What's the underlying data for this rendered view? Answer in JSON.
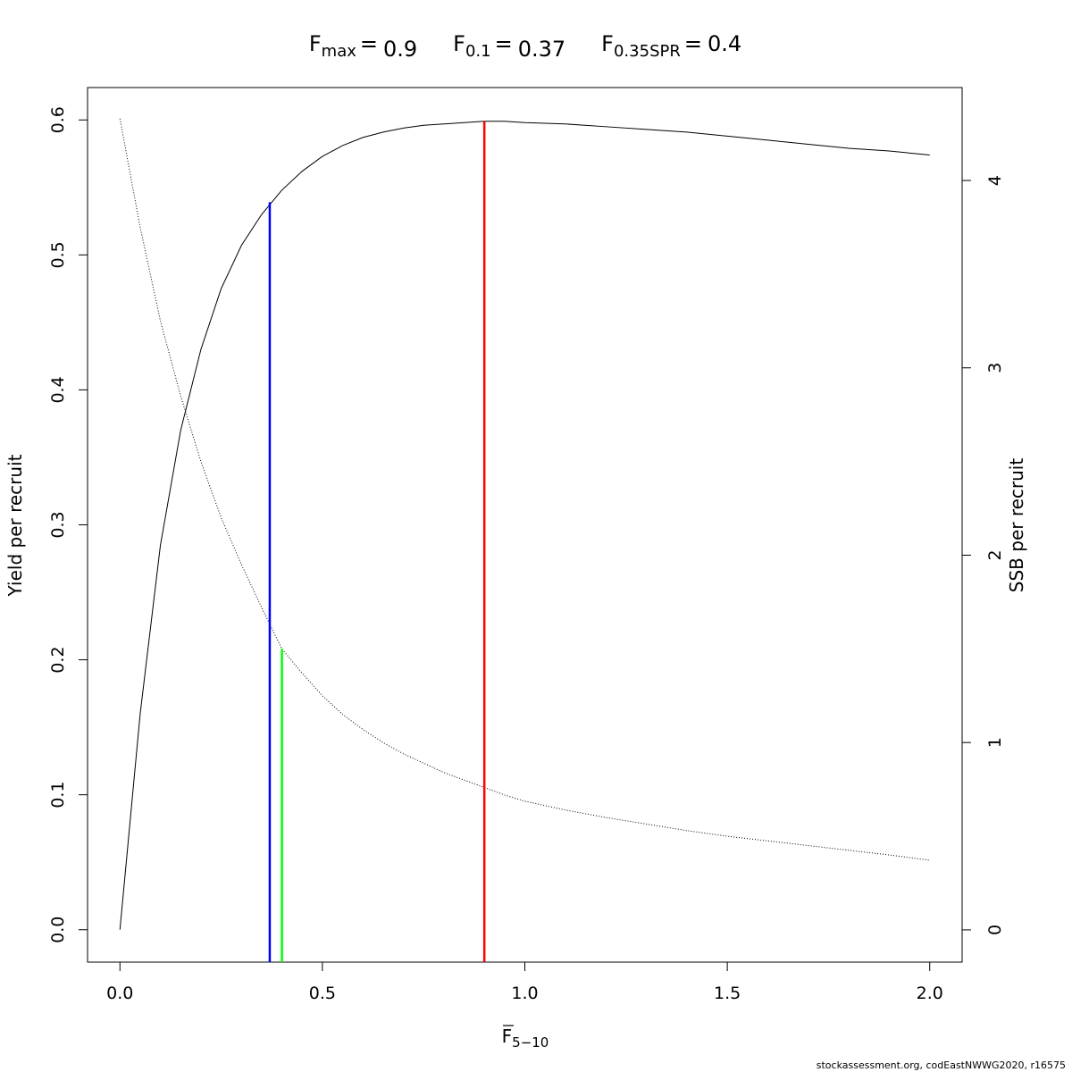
{
  "chart_data": {
    "type": "line",
    "reference_lines": [
      {
        "symbol": "F",
        "subscript": "max",
        "relation": "=",
        "x": 0.9,
        "y_end": 0.599,
        "color": "#ff0000"
      },
      {
        "symbol": "F",
        "subscript": "0.1",
        "relation": "=",
        "x": 0.37,
        "y_end": 0.539,
        "color": "#0000ff"
      },
      {
        "symbol": "F",
        "subscript": "0.35SPR",
        "relation": "=",
        "x": 0.4,
        "y_end": 1.5,
        "axis": "y2",
        "color": "#00ff00"
      }
    ],
    "xlabel": {
      "symbol": "F",
      "subscript": "5−10"
    },
    "ylabel": "Yield per recruit",
    "y2label": "SSB per recruit",
    "footer": "stockassessment.org, codEastNWWG2020, r16575",
    "x": [
      0,
      0.05,
      0.1,
      0.15,
      0.2,
      0.25,
      0.3,
      0.35,
      0.4,
      0.45,
      0.5,
      0.55,
      0.6,
      0.65,
      0.7,
      0.75,
      0.8,
      0.85,
      0.9,
      0.95,
      1.0,
      1.1,
      1.2,
      1.3,
      1.4,
      1.5,
      1.6,
      1.7,
      1.8,
      1.9,
      2.0
    ],
    "series": [
      {
        "color": "#000000",
        "line_style": "solid",
        "values": [
          0,
          0.16,
          0.285,
          0.37,
          0.43,
          0.475,
          0.507,
          0.53,
          0.548,
          0.562,
          0.573,
          0.581,
          0.587,
          0.591,
          0.594,
          0.596,
          0.597,
          0.598,
          0.599,
          0.599,
          0.598,
          0.597,
          0.595,
          0.593,
          0.591,
          0.588,
          0.585,
          0.582,
          0.579,
          0.577,
          0.574
        ]
      },
      {
        "color": "#000000",
        "line_style": "dotted",
        "axis": "y2",
        "values": [
          4.33,
          3.75,
          3.25,
          2.85,
          2.5,
          2.2,
          1.95,
          1.72,
          1.5,
          1.37,
          1.25,
          1.15,
          1.07,
          1.0,
          0.94,
          0.89,
          0.84,
          0.8,
          0.76,
          0.72,
          0.687,
          0.64,
          0.6,
          0.565,
          0.53,
          0.5,
          0.475,
          0.45,
          0.425,
          0.4,
          0.372
        ]
      }
    ],
    "xlim": [
      -0.08,
      2.08
    ],
    "xticks": [
      {
        "value": 0,
        "label": "0.0"
      },
      0.5,
      {
        "value": 1,
        "label": "1.0"
      },
      1.5,
      {
        "value": 2,
        "label": "2.0"
      }
    ],
    "ylim": [
      -0.024,
      0.624
    ],
    "yticks": [
      {
        "value": 0,
        "label": "0.0"
      },
      0.1,
      0.2,
      0.3,
      0.4,
      0.5,
      0.6
    ],
    "y2lim": [
      -0.172,
      4.496
    ],
    "y2ticks": [
      0,
      1,
      2,
      3,
      4
    ]
  }
}
